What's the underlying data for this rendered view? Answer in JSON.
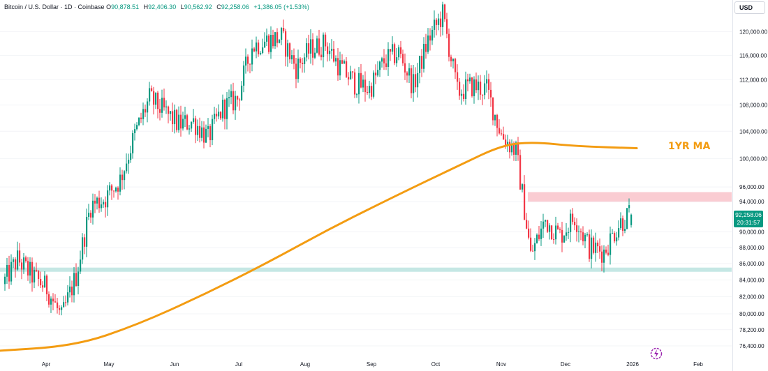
{
  "header": {
    "symbol": "Bitcoin / U.S. Dollar · 1D · Coinbase",
    "open_label": "O",
    "open": "90,878.51",
    "high_label": "H",
    "high": "92,406.30",
    "low_label": "L",
    "low": "90,562.92",
    "close_label": "C",
    "close": "92,258.06",
    "change": "+1,386.05 (+1.53%)"
  },
  "currency_button": "USD",
  "price_tag": {
    "price": "92,258.06",
    "countdown": "20:31:57",
    "color": "#089981"
  },
  "ma_label": "1YR MA",
  "colors": {
    "up": "#089981",
    "down": "#f23645",
    "ma": "#f39c12",
    "resistance": "#f8bbc3",
    "support": "#b2dfdb"
  },
  "chart_data": {
    "type": "candlestick",
    "title": "",
    "y_axis": {
      "ticks": [
        76400,
        78200,
        80000,
        82000,
        84000,
        86000,
        88000,
        90000,
        94000,
        96000,
        100000,
        104000,
        108000,
        112000,
        116000,
        120000
      ],
      "tick_labels": [
        "76,400.00",
        "78,200.00",
        "80,000.00",
        "82,000.00",
        "84,000.00",
        "86,000.00",
        "88,000.00",
        "90,000.00",
        "94,000.00",
        "96,000.00",
        "100,000.00",
        "104,000.00",
        "108,000.00",
        "112,000.00",
        "116,000.00",
        "120,000.00"
      ],
      "scale": "log"
    },
    "x_axis": {
      "labels": [
        "Apr",
        "May",
        "Jun",
        "Jul",
        "Aug",
        "Sep",
        "Oct",
        "Nov",
        "Dec",
        "2026",
        "Feb"
      ]
    },
    "series": [
      {
        "kind": "candles",
        "x": [
          "2025-03-12",
          "2025-03-19",
          "2025-03-26",
          "2025-04-02",
          "2025-04-09",
          "2025-04-16",
          "2025-04-23",
          "2025-04-30",
          "2025-05-07",
          "2025-05-14",
          "2025-05-21",
          "2025-05-28",
          "2025-06-04",
          "2025-06-11",
          "2025-06-18",
          "2025-06-25",
          "2025-07-02",
          "2025-07-09",
          "2025-07-16",
          "2025-07-23",
          "2025-07-30",
          "2025-08-06",
          "2025-08-13",
          "2025-08-20",
          "2025-08-27",
          "2025-09-03",
          "2025-09-10",
          "2025-09-17",
          "2025-09-24",
          "2025-10-01",
          "2025-10-08",
          "2025-10-15",
          "2025-10-22",
          "2025-10-29",
          "2025-11-05",
          "2025-11-12",
          "2025-11-19",
          "2025-11-26",
          "2025-12-03",
          "2025-12-10",
          "2025-12-17",
          "2025-12-24",
          "2025-12-31",
          "2026-01-05"
        ],
        "close": [
          83500,
          86500,
          84500,
          83000,
          79500,
          84500,
          93500,
          94500,
          97000,
          103500,
          109000,
          107000,
          105000,
          105500,
          103000,
          107500,
          109000,
          117500,
          118500,
          119000,
          114000,
          117000,
          118000,
          114000,
          111500,
          110500,
          115000,
          116500,
          111000,
          118500,
          123000,
          110000,
          111000,
          110500,
          103500,
          101000,
          87000,
          91500,
          89500,
          92000,
          88000,
          87500,
          91000,
          92258
        ]
      },
      {
        "kind": "line",
        "name": "1YR MA",
        "x": [
          "2025-03-05",
          "2025-04-15",
          "2025-05-15",
          "2025-06-15",
          "2025-07-15",
          "2025-08-15",
          "2025-09-15",
          "2025-10-15",
          "2025-11-05",
          "2025-11-20",
          "2025-12-10",
          "2026-01-08"
        ],
        "y": [
          75800,
          76400,
          78800,
          82200,
          86000,
          90500,
          94800,
          99000,
          102000,
          102400,
          101800,
          101500
        ]
      }
    ],
    "zones": [
      {
        "name": "resistance",
        "from": 94000,
        "to": 95300
      },
      {
        "name": "support",
        "from": 85000,
        "to": 85500
      }
    ]
  }
}
